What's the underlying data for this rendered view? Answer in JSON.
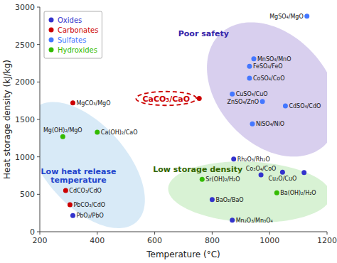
{
  "chart_data": {
    "type": "scatter",
    "xlabel": "Temperature (°C)",
    "ylabel": "Heat storage density (kJ/kg)",
    "xlim": [
      200,
      1200
    ],
    "ylim": [
      0,
      3000
    ],
    "xticks": [
      200,
      400,
      600,
      800,
      1000,
      1200
    ],
    "yticks": [
      0,
      500,
      1000,
      1500,
      2000,
      2500,
      3000
    ],
    "grid": false,
    "legend": "upper left",
    "series": [
      {
        "name": "Oxides",
        "color": "#3333cc",
        "x": [
          875,
          970,
          1045,
          1120,
          800,
          870,
          315
        ],
        "values": [
          970,
          760,
          795,
          790,
          430,
          155,
          215
        ],
        "labels": [
          "Rh₂O₃/Rh₂O",
          "Co₃O₄/CoO",
          "Cu₂O/CuO",
          null,
          "BaO₂/BaO",
          "Mn₂O₃/Mn₃O₄",
          "PbO₂/PbO"
        ]
      },
      {
        "name": "Carbonates",
        "color": "#cc0000",
        "x": [
          315,
          755,
          290,
          305
        ],
        "values": [
          1720,
          1780,
          550,
          360
        ],
        "labels": [
          "MgCO₃/MgO",
          null,
          "CdCO₃/CdO",
          "PbCO₃/CdO"
        ]
      },
      {
        "name": "Sulfates",
        "color": "#4477ff",
        "x": [
          1130,
          945,
          930,
          930,
          870,
          975,
          1055,
          940
        ],
        "values": [
          2880,
          2310,
          2210,
          2050,
          1840,
          1740,
          1680,
          1440
        ],
        "labels": [
          "MgSO₄/MgO",
          "MnSO₄/MnO",
          "FeSO₄/FeO",
          "CoSO₄/CoO",
          "CuSO₄/CuO",
          "ZnSO₄/ZnO",
          "CdSO₄/CdO",
          "NiSO₄/NiO"
        ]
      },
      {
        "name": "Hydroxides",
        "color": "#33bb00",
        "x": [
          400,
          280,
          765,
          1025
        ],
        "values": [
          1330,
          1270,
          700,
          520
        ],
        "labels": [
          "Ca(OH)₂/CaO",
          "Mg(OH)₂/MgO",
          "Sr(OH)₂/H₂O",
          "Ba(OH)₂/H₂O"
        ]
      }
    ],
    "annotations": [
      {
        "type": "ellipse",
        "text": "Low heat release\ntemperature",
        "cx": 360,
        "cy": 890,
        "width": 340,
        "height": 1700,
        "angle": 8,
        "color": "#b8d8f0",
        "text_x": 335,
        "text_y": 750,
        "text_color": "#2244cc"
      },
      {
        "type": "ellipse",
        "text": "Poor safety",
        "cx": 1010,
        "cy": 1900,
        "width": 430,
        "height": 1800,
        "angle": 5,
        "color": "#b8a8e0",
        "text_x": 770,
        "text_y": 2650,
        "text_color": "#3322aa"
      },
      {
        "type": "ellipse",
        "text": "Low storage density",
        "cx": 930,
        "cy": 530,
        "width": 560,
        "height": 820,
        "angle": 8,
        "color": "#b8e8b0",
        "text_x": 750,
        "text_y": 840,
        "text_color": "#336600"
      },
      {
        "type": "ellipse",
        "text": "CaCO₃/CaO",
        "cx": 640,
        "cy": 1780,
        "width": 210,
        "height": 185,
        "angle": 0,
        "color": "#cc0000",
        "line_style": "dashed",
        "text_x": 640,
        "text_y": 1780,
        "text_color": "#cc0000"
      }
    ]
  }
}
